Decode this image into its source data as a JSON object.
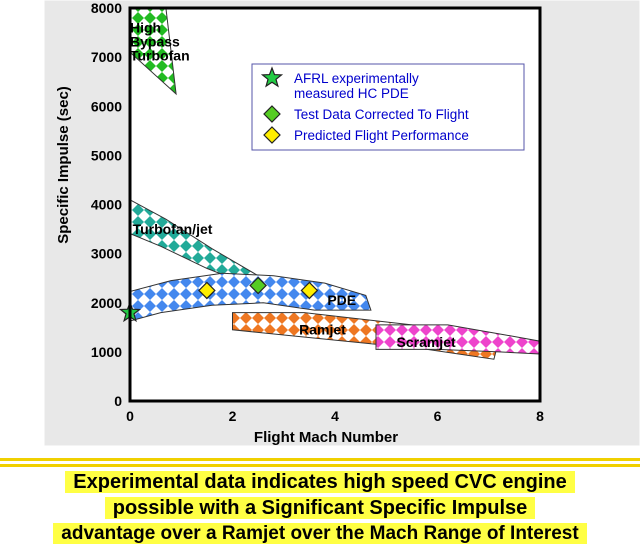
{
  "colors": {
    "frame_bg": "#e8e8e8",
    "plot_bg": "#ffffff",
    "legend_text": "#0000cc",
    "caption_highlight": "#ffff44",
    "turbofan_highbypass": "#22bb22",
    "turbofan_jet": "#22aa99",
    "pde": "#4488ee",
    "ramjet": "#ee7722",
    "scramjet": "#ee44cc",
    "afrl_star": "#22cc44",
    "test_data_diamond": "#55cc22",
    "predicted_diamond": "#ffee00"
  },
  "chart_data": {
    "type": "scatter",
    "title": "",
    "xlabel": "Flight Mach Number",
    "ylabel": "Specific Impulse (sec)",
    "xlim": [
      0,
      8
    ],
    "ylim": [
      0,
      8000
    ],
    "xticks": [
      "0",
      "2",
      "4",
      "6",
      "8"
    ],
    "yticks": [
      "0",
      "1000",
      "2000",
      "3000",
      "4000",
      "5000",
      "6000",
      "7000",
      "8000"
    ],
    "grid": false,
    "legend_position": "top-right",
    "regions": [
      {
        "name": "High Bypass Turbofan",
        "label_lines": [
          "High",
          "Bypass",
          "Turbofan"
        ],
        "label_at": [
          0.0,
          7500
        ],
        "color_key": "turbofan_highbypass",
        "polygon": [
          [
            0.0,
            8000
          ],
          [
            0.7,
            8000
          ],
          [
            0.9,
            6250
          ],
          [
            0.0,
            7100
          ]
        ]
      },
      {
        "name": "Turbofan/jet",
        "label_lines": [
          "Turbofan/jet"
        ],
        "label_at": [
          0.05,
          3400
        ],
        "color_key": "turbofan_jet",
        "polygon": [
          [
            -0.1,
            4150
          ],
          [
            0.7,
            3700
          ],
          [
            1.6,
            3100
          ],
          [
            2.5,
            2550
          ],
          [
            3.2,
            2300
          ],
          [
            2.6,
            2250
          ],
          [
            1.5,
            2700
          ],
          [
            0.6,
            3150
          ],
          [
            -0.1,
            3450
          ]
        ]
      },
      {
        "name": "PDE",
        "label_lines": [
          "PDE"
        ],
        "label_at": [
          3.85,
          1950
        ],
        "color_key": "pde",
        "polygon": [
          [
            -0.1,
            2200
          ],
          [
            0.8,
            2450
          ],
          [
            1.8,
            2600
          ],
          [
            2.8,
            2550
          ],
          [
            3.8,
            2400
          ],
          [
            4.6,
            2150
          ],
          [
            4.7,
            1850
          ],
          [
            3.6,
            1850
          ],
          [
            2.6,
            2000
          ],
          [
            1.6,
            1950
          ],
          [
            0.6,
            1800
          ],
          [
            -0.1,
            1600
          ]
        ]
      },
      {
        "name": "Ramjet",
        "label_lines": [
          "Ramjet"
        ],
        "label_at": [
          3.3,
          1350
        ],
        "color_key": "ramjet",
        "polygon": [
          [
            2.0,
            1800
          ],
          [
            3.4,
            1800
          ],
          [
            5.5,
            1550
          ],
          [
            7.2,
            1250
          ],
          [
            7.1,
            850
          ],
          [
            5.8,
            1050
          ],
          [
            3.9,
            1250
          ],
          [
            2.0,
            1450
          ]
        ]
      },
      {
        "name": "Scramjet",
        "label_lines": [
          "Scramjet"
        ],
        "label_at": [
          5.2,
          1100
        ],
        "color_key": "scramjet",
        "polygon": [
          [
            4.8,
            1550
          ],
          [
            6.2,
            1550
          ],
          [
            7.3,
            1350
          ],
          [
            8.1,
            1200
          ],
          [
            8.1,
            950
          ],
          [
            7.2,
            1000
          ],
          [
            6.0,
            1050
          ],
          [
            4.8,
            1050
          ]
        ]
      }
    ],
    "series": [
      {
        "name": "AFRL experimentally measured HC PDE",
        "legend_lines": [
          "AFRL experimentally",
          "measured HC PDE"
        ],
        "marker": "star",
        "color_key": "afrl_star",
        "points": [
          [
            0.0,
            1800
          ]
        ]
      },
      {
        "name": "Test Data Corrected To Flight",
        "legend_lines": [
          "Test Data Corrected To Flight"
        ],
        "marker": "diamond",
        "color_key": "test_data_diamond",
        "points": [
          [
            2.5,
            2350
          ]
        ]
      },
      {
        "name": "Predicted Flight Performance",
        "legend_lines": [
          "Predicted Flight Performance"
        ],
        "marker": "diamond",
        "color_key": "predicted_diamond",
        "points": [
          [
            1.5,
            2250
          ],
          [
            3.5,
            2250
          ]
        ]
      }
    ]
  },
  "caption": {
    "line1": "Experimental data indicates high speed CVC engine",
    "line2": "possible with a Significant Specific Impulse",
    "line3": "advantage over a Ramjet over the Mach Range of Interest"
  }
}
